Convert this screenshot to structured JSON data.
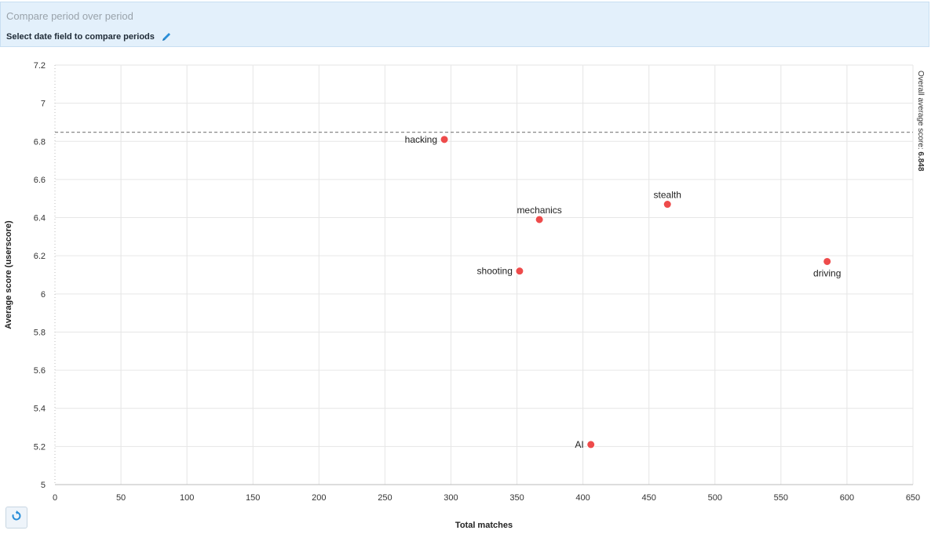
{
  "compare_panel": {
    "title": "Compare period over period",
    "select_label": "Select date field to compare periods",
    "edit_icon": "pencil-icon"
  },
  "reset_button": {
    "icon": "refresh-icon"
  },
  "colors": {
    "point": "#ee4b4b",
    "grid": "#e6e6e6",
    "reference_line": "#888888",
    "panel_background": "#e3f0fb",
    "accent": "#2a8ed8"
  },
  "chart_data": {
    "type": "scatter",
    "xlabel": "Total matches",
    "ylabel": "Average score (userscore)",
    "xlim": [
      0,
      650
    ],
    "ylim": [
      5,
      7.2
    ],
    "xticks": [
      0,
      50,
      100,
      150,
      200,
      250,
      300,
      350,
      400,
      450,
      500,
      550,
      600,
      650
    ],
    "yticks": [
      5,
      5.2,
      5.4,
      5.6,
      5.8,
      6,
      6.2,
      6.4,
      6.6,
      6.8,
      7,
      7.2
    ],
    "grid": true,
    "points": [
      {
        "label": "hacking",
        "x": 295,
        "y": 6.81,
        "label_position": "left"
      },
      {
        "label": "mechanics",
        "x": 367,
        "y": 6.39,
        "label_position": "top"
      },
      {
        "label": "stealth",
        "x": 464,
        "y": 6.47,
        "label_position": "top"
      },
      {
        "label": "shooting",
        "x": 352,
        "y": 6.12,
        "label_position": "left"
      },
      {
        "label": "driving",
        "x": 585,
        "y": 6.17,
        "label_position": "bottom"
      },
      {
        "label": "AI",
        "x": 406,
        "y": 5.21,
        "label_position": "left"
      }
    ],
    "reference_line": {
      "value": 6.848,
      "label_prefix": "Overall average score: ",
      "label_value": "6.848"
    }
  }
}
